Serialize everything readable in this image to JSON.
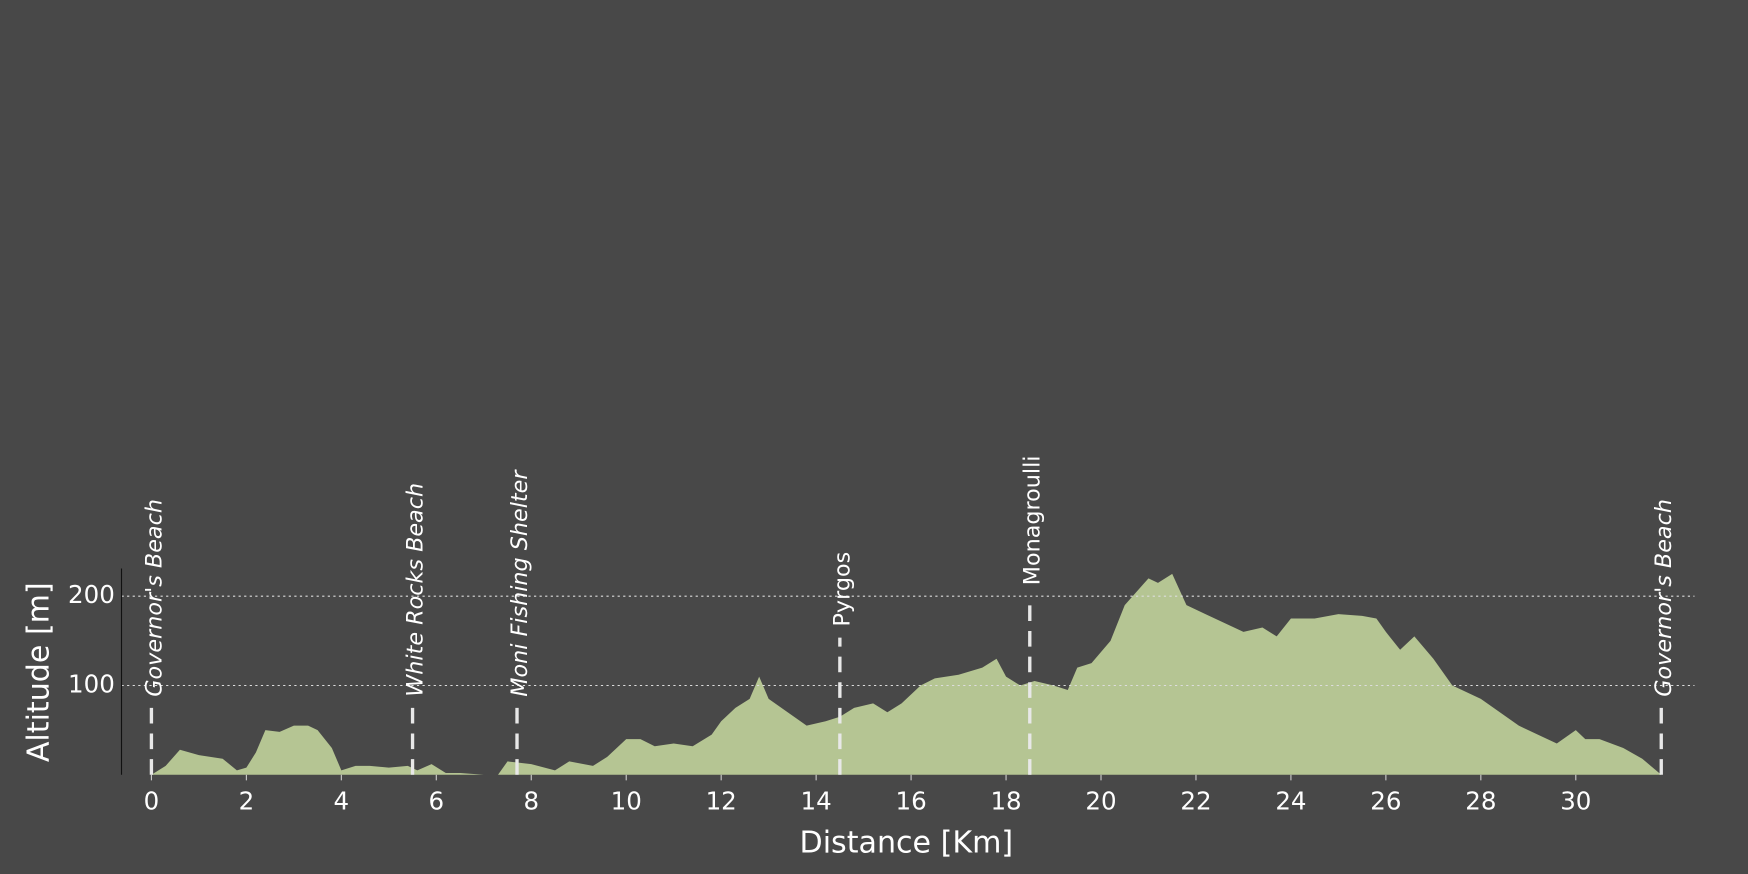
{
  "chart_data": {
    "type": "area",
    "xlabel": "Distance [Km]",
    "ylabel": "Altitude [m]",
    "x": [
      0,
      0.3,
      0.6,
      1.0,
      1.5,
      1.8,
      2.0,
      2.2,
      2.4,
      2.7,
      3.0,
      3.3,
      3.5,
      3.8,
      4.0,
      4.3,
      4.6,
      5.0,
      5.4,
      5.6,
      5.9,
      6.2,
      6.5,
      7.0,
      7.3,
      7.5,
      8.0,
      8.5,
      8.8,
      9.3,
      9.6,
      10.0,
      10.3,
      10.6,
      11.0,
      11.4,
      11.8,
      12.0,
      12.3,
      12.6,
      12.8,
      13.0,
      13.4,
      13.8,
      14.2,
      14.5,
      14.8,
      15.2,
      15.5,
      15.8,
      16.2,
      16.5,
      17.0,
      17.5,
      17.8,
      18.0,
      18.3,
      18.6,
      19.0,
      19.3,
      19.5,
      19.8,
      20.2,
      20.5,
      21.0,
      21.2,
      21.5,
      21.8,
      22.2,
      22.6,
      23.0,
      23.4,
      23.7,
      24.0,
      24.5,
      25.0,
      25.5,
      25.8,
      26.0,
      26.3,
      26.6,
      27.0,
      27.4,
      28.0,
      28.4,
      28.8,
      29.2,
      29.6,
      30.0,
      30.2,
      30.5,
      31.0,
      31.4,
      31.8
    ],
    "values": [
      0,
      10,
      28,
      22,
      18,
      5,
      8,
      25,
      50,
      48,
      55,
      55,
      50,
      30,
      5,
      10,
      10,
      8,
      10,
      5,
      12,
      2,
      2,
      0,
      0,
      15,
      12,
      5,
      15,
      10,
      20,
      40,
      40,
      32,
      35,
      32,
      45,
      60,
      75,
      85,
      110,
      85,
      70,
      55,
      60,
      65,
      75,
      80,
      70,
      80,
      100,
      108,
      112,
      120,
      130,
      110,
      100,
      105,
      100,
      95,
      120,
      125,
      150,
      190,
      220,
      215,
      225,
      190,
      180,
      170,
      160,
      165,
      155,
      175,
      175,
      180,
      178,
      175,
      160,
      140,
      155,
      130,
      100,
      85,
      70,
      55,
      45,
      35,
      50,
      40,
      40,
      30,
      18,
      0
    ],
    "color": "#b5c593",
    "xlim": [
      -0.63,
      32.5
    ],
    "ylim": [
      0,
      231
    ],
    "xticks": [
      0,
      2,
      4,
      6,
      8,
      10,
      12,
      14,
      16,
      18,
      20,
      22,
      24,
      26,
      28,
      30
    ],
    "yticks": [
      100,
      200
    ],
    "grid": true,
    "annotations": [
      {
        "label": "Governor's Beach",
        "x": 0
      },
      {
        "label": "White Rocks Beach",
        "x": 5.5
      },
      {
        "label": "Moni Fishing Shelter",
        "x": 7.7
      },
      {
        "label": "Pyrgos",
        "x": 14.5
      },
      {
        "label": "Monagroulli",
        "x": 18.5
      },
      {
        "label": "Governor's Beach",
        "x": 31.8
      }
    ]
  }
}
